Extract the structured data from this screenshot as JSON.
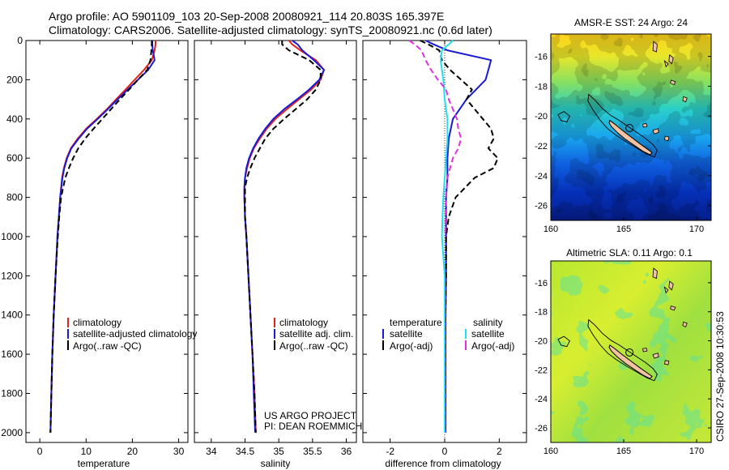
{
  "header": {
    "title_line1": "Argo profile: AO 5901109_103 20-Sep-2008 20080921_114 20.803S 165.397E",
    "title_line2": "Climatology: CARS2006. Satellite-adjusted climatology: synTS_20080921.nc (0.6d later)"
  },
  "footer": {
    "project_line1": "US ARGO PROJECT",
    "project_line2": "PI: DEAN ROEMMICH",
    "stamp": "CSIRO 27-Sep-2008 10:30:53"
  },
  "colors": {
    "climatology": "#e0241b",
    "satellite": "#1a1ad6",
    "argo": "#000000",
    "salinity_satellite": "#22e0f0",
    "salinity_argo": "#e030e0",
    "land": "#f2c2a2"
  },
  "chart_data": [
    {
      "id": "temperature",
      "type": "line",
      "xlabel": "temperature",
      "ylabel": "",
      "xlim": [
        -3,
        32
      ],
      "ylim": [
        2050,
        0
      ],
      "xticks": [
        "0",
        "10",
        "20",
        "30"
      ],
      "xtick_values": [
        0,
        10,
        20,
        30
      ],
      "yticks": [
        "0",
        "200",
        "400",
        "600",
        "800",
        "1000",
        "1200",
        "1400",
        "1600",
        "1800",
        "2000"
      ],
      "ytick_values": [
        0,
        200,
        400,
        600,
        800,
        1000,
        1200,
        1400,
        1600,
        1800,
        2000
      ],
      "legend": [
        "climatology",
        "satellite-adjusted climatology",
        "Argo(..raw -QC)"
      ],
      "series": [
        {
          "name": "climatology",
          "color": "#e0241b",
          "style": "solid",
          "depth": [
            0,
            20,
            50,
            100,
            150,
            200,
            250,
            300,
            350,
            400,
            450,
            500,
            550,
            600,
            650,
            700,
            800,
            900,
            1000,
            1200,
            1400,
            1600,
            1800,
            2000
          ],
          "values": [
            25,
            25,
            24.8,
            24.2,
            22.5,
            20.5,
            18.5,
            16.5,
            14.5,
            12.3,
            10,
            8.2,
            6.7,
            5.8,
            5.2,
            4.8,
            4.4,
            4.1,
            3.8,
            3.4,
            3.0,
            2.7,
            2.5,
            2.3
          ]
        },
        {
          "name": "satellite-adjusted climatology",
          "color": "#1a1ad6",
          "style": "solid",
          "depth": [
            0,
            20,
            50,
            100,
            150,
            200,
            250,
            300,
            350,
            400,
            450,
            500,
            550,
            600,
            650,
            700,
            800,
            900,
            1000,
            1200,
            1400,
            1600,
            1800,
            2000
          ],
          "values": [
            24.3,
            24.3,
            24.4,
            24.8,
            23.4,
            21.2,
            19,
            16.8,
            14.7,
            12.5,
            10.2,
            8.4,
            6.8,
            5.9,
            5.3,
            4.9,
            4.4,
            4.1,
            3.8,
            3.4,
            3.0,
            2.7,
            2.5,
            2.3
          ]
        },
        {
          "name": "Argo(..raw -QC)",
          "color": "#000000",
          "style": "dashed",
          "depth": [
            0,
            20,
            50,
            100,
            150,
            200,
            250,
            300,
            350,
            400,
            450,
            500,
            550,
            600,
            650,
            700,
            800,
            900,
            1000,
            1200,
            1400,
            1600,
            1800,
            2000
          ],
          "values": [
            24.2,
            24.2,
            24.1,
            23.9,
            23.2,
            21.2,
            19.3,
            17.3,
            15.4,
            13.5,
            11.6,
            9.8,
            8.3,
            7.2,
            6.3,
            5.5,
            4.6,
            4.2,
            3.9,
            3.4,
            3.0,
            2.7,
            2.5,
            2.3
          ]
        }
      ]
    },
    {
      "id": "salinity",
      "type": "line",
      "xlabel": "salinity",
      "ylabel": "",
      "xlim": [
        33.75,
        36.15
      ],
      "ylim": [
        2050,
        0
      ],
      "xticks": [
        "34",
        "34.5",
        "35",
        "35.5",
        "36"
      ],
      "xtick_values": [
        34,
        34.5,
        35,
        35.5,
        36
      ],
      "legend": [
        "climatology",
        "satellite adj. clim.",
        "Argo(..raw -QC)"
      ],
      "series": [
        {
          "name": "climatology",
          "color": "#e0241b",
          "style": "solid",
          "depth": [
            0,
            20,
            50,
            100,
            150,
            200,
            250,
            300,
            350,
            400,
            450,
            500,
            550,
            600,
            650,
            700,
            750,
            800,
            900,
            1000,
            1200,
            1400,
            1600,
            1800,
            2000
          ],
          "values": [
            35.15,
            35.2,
            35.32,
            35.55,
            35.67,
            35.62,
            35.48,
            35.3,
            35.12,
            34.95,
            34.82,
            34.72,
            34.63,
            34.57,
            34.53,
            34.5,
            34.49,
            34.49,
            34.5,
            34.52,
            34.55,
            34.58,
            34.61,
            34.64,
            34.66
          ]
        },
        {
          "name": "satellite adj. clim.",
          "color": "#1a1ad6",
          "style": "solid",
          "depth": [
            0,
            20,
            50,
            100,
            150,
            200,
            250,
            300,
            350,
            400,
            450,
            500,
            550,
            600,
            650,
            700,
            750,
            800,
            900,
            1000,
            1200,
            1400,
            1600,
            1800,
            2000
          ],
          "values": [
            35.2,
            35.28,
            35.35,
            35.52,
            35.67,
            35.6,
            35.45,
            35.27,
            35.08,
            34.92,
            34.8,
            34.7,
            34.62,
            34.56,
            34.52,
            34.5,
            34.49,
            34.49,
            34.5,
            34.52,
            34.55,
            34.58,
            34.61,
            34.63,
            34.65
          ]
        },
        {
          "name": "Argo(..raw -QC)",
          "color": "#000000",
          "style": "dashed",
          "depth": [
            0,
            20,
            50,
            100,
            150,
            200,
            250,
            300,
            350,
            400,
            450,
            500,
            550,
            600,
            650,
            700,
            750,
            800,
            900,
            1000,
            1200,
            1400,
            1600,
            1800,
            2000
          ],
          "values": [
            35.05,
            35.05,
            35.15,
            35.45,
            35.62,
            35.62,
            35.55,
            35.42,
            35.25,
            35.08,
            34.92,
            34.8,
            34.72,
            34.64,
            34.58,
            34.53,
            34.5,
            34.5,
            34.5,
            34.52,
            34.55,
            34.58,
            34.61,
            34.64,
            34.66
          ]
        }
      ]
    },
    {
      "id": "difference",
      "type": "line",
      "xlabel": "difference from climatology",
      "ylabel": "",
      "xlim": [
        -3,
        3
      ],
      "ylim": [
        2050,
        0
      ],
      "xticks": [
        "-2",
        "0",
        "2"
      ],
      "xtick_values": [
        -2,
        0,
        2
      ],
      "legend_headers": [
        "temperature",
        "salinity"
      ],
      "legend": [
        "satellite",
        "Argo(-adj)",
        "satellite",
        "Argo(-adj)"
      ],
      "series": [
        {
          "name": "temperature satellite",
          "color": "#1a1ad6",
          "style": "solid",
          "depth": [
            0,
            20,
            50,
            100,
            150,
            200,
            300,
            400,
            500,
            600,
            700,
            800,
            900,
            1000,
            1200,
            1400,
            1600,
            1800,
            2000
          ],
          "values": [
            -0.7,
            -0.4,
            0.1,
            1.7,
            1.6,
            1.5,
            0.8,
            0.3,
            0.15,
            0.1,
            0.1,
            0.05,
            0.05,
            0.05,
            0.05,
            0.03,
            0.03,
            0.03,
            0.03
          ]
        },
        {
          "name": "temperature Argo(-adj)",
          "color": "#000000",
          "style": "dashed",
          "depth": [
            0,
            20,
            50,
            100,
            150,
            200,
            250,
            300,
            350,
            400,
            450,
            500,
            550,
            600,
            650,
            700,
            800,
            900,
            1000,
            1200,
            1400,
            1600,
            1800,
            2000
          ],
          "values": [
            -0.9,
            -0.6,
            -0.2,
            -0.1,
            0.2,
            0.6,
            1.0,
            0.8,
            1.1,
            1.4,
            1.7,
            1.8,
            1.6,
            1.95,
            1.8,
            1.1,
            0.4,
            0.15,
            0.05,
            0.05,
            0.03,
            0.03,
            0.03,
            0.02
          ]
        },
        {
          "name": "salinity satellite",
          "color": "#22e0f0",
          "style": "solid",
          "depth": [
            0,
            20,
            50,
            100,
            150,
            200,
            300,
            400,
            500,
            600,
            700,
            800,
            900,
            1000,
            1100,
            1200,
            1400,
            1600,
            1800,
            2000
          ],
          "values": [
            0.3,
            0.15,
            -0.1,
            -0.15,
            -0.1,
            -0.05,
            0.0,
            0.1,
            0.1,
            0.05,
            0.0,
            -0.05,
            -0.08,
            -0.1,
            -0.05,
            0.0,
            0.0,
            0.0,
            0.0,
            0.0
          ]
        },
        {
          "name": "salinity Argo(-adj)",
          "color": "#e030e0",
          "style": "dashed",
          "depth": [
            0,
            20,
            50,
            100,
            150,
            200,
            250,
            300,
            350,
            400,
            450,
            500,
            550,
            600,
            650,
            700,
            800,
            900,
            1000
          ],
          "values": [
            -1.3,
            -1.1,
            -0.85,
            -0.7,
            -0.5,
            -0.25,
            0.05,
            0.15,
            0.3,
            0.45,
            0.5,
            0.6,
            0.5,
            0.3,
            0.2,
            0.1,
            0.05,
            0.03,
            0.02
          ]
        }
      ]
    },
    {
      "id": "sst_map",
      "type": "heatmap",
      "title": "AMSR-E SST: 24 Argo: 24",
      "xlim": [
        160,
        171
      ],
      "ylim": [
        -27,
        -14.5
      ],
      "xticks": [
        "160",
        "165",
        "170"
      ],
      "xtick_values": [
        160,
        165,
        170
      ],
      "yticks": [
        "-16",
        "-18",
        "-20",
        "-22",
        "-24",
        "-26"
      ],
      "ytick_values": [
        -16,
        -18,
        -20,
        -22,
        -24,
        -26
      ],
      "profile_lon": 165.397,
      "profile_lat": -20.803
    },
    {
      "id": "sla_map",
      "type": "heatmap",
      "title": "Altimetric SLA: 0.11 Argo: 0.1",
      "xlim": [
        160,
        171
      ],
      "ylim": [
        -27,
        -14.5
      ],
      "xticks": [
        "160",
        "165",
        "170"
      ],
      "xtick_values": [
        160,
        165,
        170
      ],
      "yticks": [
        "-16",
        "-18",
        "-20",
        "-22",
        "-24",
        "-26"
      ],
      "ytick_values": [
        -16,
        -18,
        -20,
        -22,
        -24,
        -26
      ],
      "profile_lon": 165.397,
      "profile_lat": -20.803
    }
  ]
}
